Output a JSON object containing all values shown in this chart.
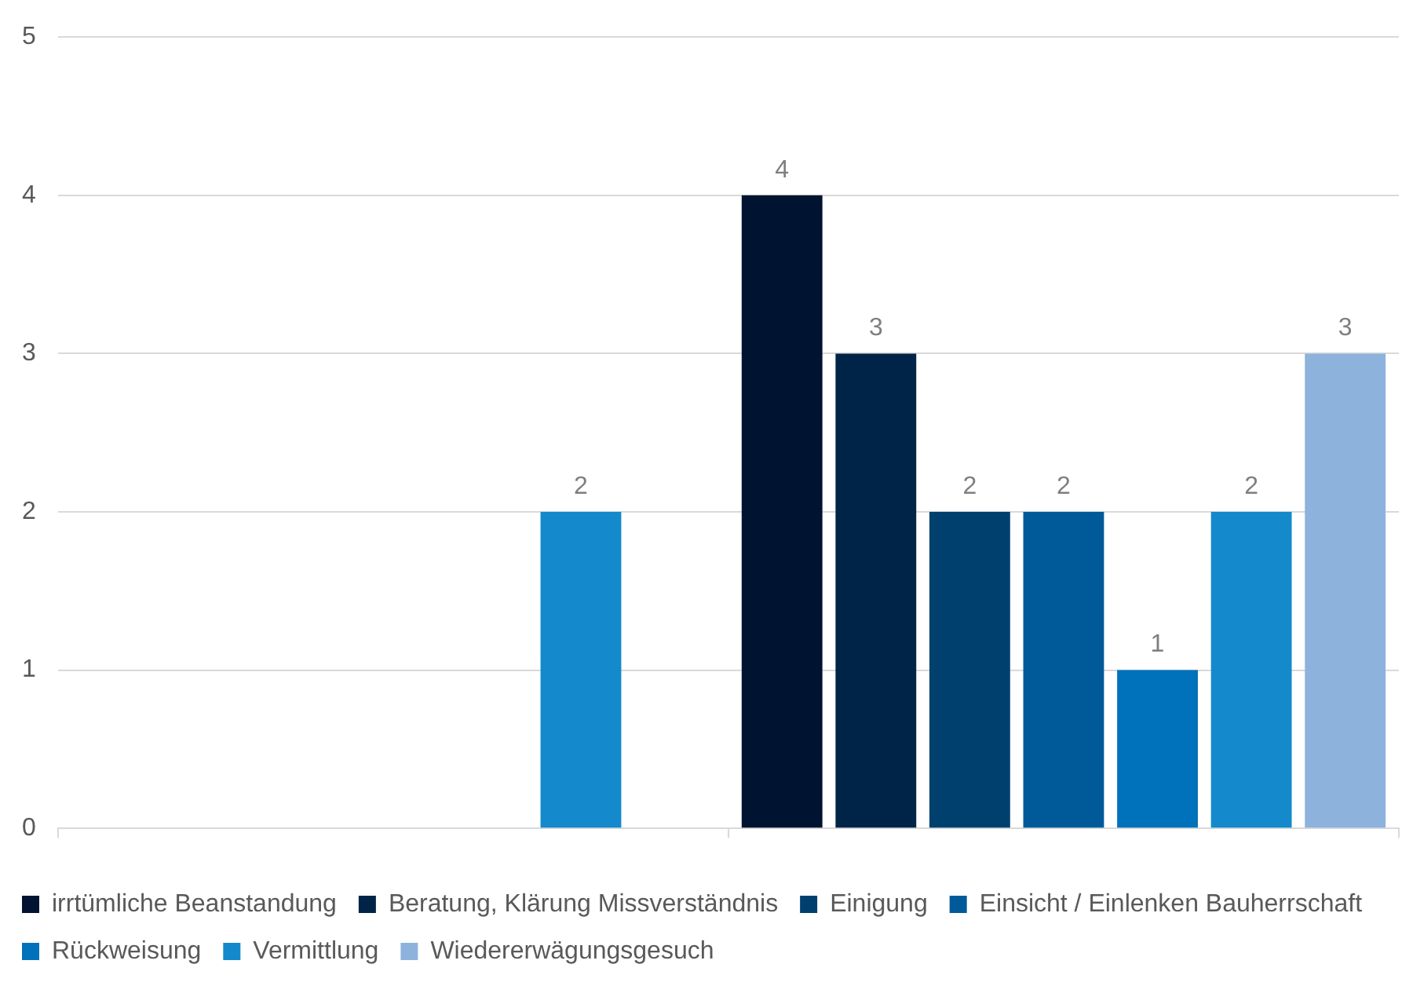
{
  "chart_data": {
    "type": "bar",
    "categories": [
      null,
      null
    ],
    "series": [
      {
        "name": "irrtümliche Beanstandung",
        "color": "#001330",
        "values": [
          null,
          4
        ]
      },
      {
        "name": "Beratung, Klärung Missverständnis",
        "color": "#002447",
        "values": [
          null,
          3
        ]
      },
      {
        "name": "Einigung",
        "color": "#00406e",
        "values": [
          null,
          2
        ]
      },
      {
        "name": "Einsicht / Einlenken Bauherrschaft",
        "color": "#005a9a",
        "values": [
          null,
          2
        ]
      },
      {
        "name": "Rückweisung",
        "color": "#0071bb",
        "values": [
          null,
          1
        ]
      },
      {
        "name": "Vermittlung",
        "color": "#1489cc",
        "values": [
          2,
          2
        ]
      },
      {
        "name": "Wiedererwägungsgesuch",
        "color": "#8db3dd",
        "values": [
          null,
          3
        ]
      }
    ],
    "ylim": [
      0,
      5
    ],
    "yticks": [
      0,
      1,
      2,
      3,
      4,
      5
    ],
    "grid": "y",
    "legend": "bottom",
    "data_labels": true
  }
}
